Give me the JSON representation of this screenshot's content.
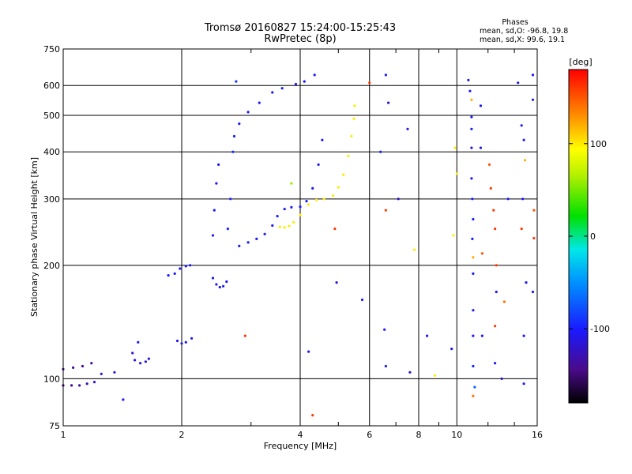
{
  "chart_data": {
    "type": "scatter",
    "title": "Tromsø 20160827 15:24:00-15:25:43",
    "subtitle": "RwPretec (8p)",
    "xlabel": "Frequency [MHz]",
    "ylabel": "Stationary phase Virtual Height [km]",
    "x_scale": "log",
    "y_scale": "log",
    "xlim": [
      1,
      16
    ],
    "ylim": [
      75,
      750
    ],
    "x_ticks": [
      1,
      2,
      4,
      6,
      8,
      10,
      16
    ],
    "y_ticks": [
      75,
      100,
      200,
      300,
      400,
      500,
      600,
      750
    ],
    "grid": true,
    "stats": {
      "heading": "Phases",
      "o_line": "mean, sd,O: -96.8, 19.8",
      "x_line": "mean, sd,X:  99.6, 19.1"
    },
    "colorbar": {
      "label": "[deg]",
      "range": [
        -180,
        180
      ],
      "ticks": [
        100,
        0,
        -100
      ],
      "tick_labels": [
        "100",
        "0",
        "-100"
      ]
    },
    "series": [
      {
        "mode": "O",
        "points": [
          [
            1.0,
            96,
            -140
          ],
          [
            1.05,
            96,
            -140
          ],
          [
            1.1,
            96,
            -135
          ],
          [
            1.15,
            97,
            -130
          ],
          [
            1.2,
            98,
            -120
          ],
          [
            1.0,
            106,
            -140
          ],
          [
            1.06,
            107,
            -140
          ],
          [
            1.12,
            108,
            -140
          ],
          [
            1.18,
            110,
            -135
          ],
          [
            1.52,
            112,
            -110
          ],
          [
            1.57,
            110,
            -110
          ],
          [
            1.62,
            111,
            -110
          ],
          [
            1.65,
            113,
            -110
          ],
          [
            1.5,
            117,
            -110
          ],
          [
            1.85,
            188,
            -100
          ],
          [
            1.92,
            190,
            -100
          ],
          [
            1.98,
            196,
            -100
          ],
          [
            2.05,
            199,
            -100
          ],
          [
            2.1,
            200,
            -100
          ],
          [
            1.95,
            126,
            -110
          ],
          [
            2.0,
            124,
            -110
          ],
          [
            2.05,
            125,
            -110
          ],
          [
            2.12,
            128,
            -110
          ],
          [
            2.4,
            185,
            -100
          ],
          [
            2.45,
            178,
            -100
          ],
          [
            2.5,
            175,
            -100
          ],
          [
            2.55,
            176,
            -100
          ],
          [
            2.6,
            181,
            -100
          ],
          [
            2.4,
            240,
            -100
          ],
          [
            2.42,
            280,
            -100
          ],
          [
            2.45,
            330,
            -100
          ],
          [
            2.48,
            370,
            -100
          ],
          [
            2.62,
            250,
            -95
          ],
          [
            2.66,
            300,
            -95
          ],
          [
            2.7,
            400,
            -95
          ],
          [
            2.72,
            440,
            -95
          ],
          [
            2.8,
            475,
            -100
          ],
          [
            2.95,
            510,
            -100
          ],
          [
            3.15,
            540,
            -100
          ],
          [
            3.4,
            575,
            -100
          ],
          [
            3.6,
            590,
            -100
          ],
          [
            3.9,
            605,
            -100
          ],
          [
            4.1,
            615,
            -100
          ],
          [
            4.35,
            640,
            -100
          ],
          [
            2.8,
            225,
            -100
          ],
          [
            2.95,
            230,
            -100
          ],
          [
            3.1,
            235,
            -100
          ],
          [
            3.25,
            242,
            -100
          ],
          [
            3.4,
            255,
            -100
          ],
          [
            3.5,
            270,
            -100
          ],
          [
            3.65,
            282,
            -100
          ],
          [
            3.8,
            285,
            -100
          ],
          [
            4.0,
            286,
            -100
          ],
          [
            4.15,
            296,
            -100
          ],
          [
            4.3,
            320,
            -100
          ],
          [
            4.45,
            370,
            -100
          ],
          [
            4.55,
            430,
            -100
          ]
        ]
      },
      {
        "mode": "X",
        "points": [
          [
            3.55,
            253,
            100
          ],
          [
            3.65,
            252,
            100
          ],
          [
            3.75,
            254,
            100
          ],
          [
            3.85,
            260,
            100
          ],
          [
            4.0,
            272,
            100
          ],
          [
            4.2,
            290,
            100
          ],
          [
            4.4,
            298,
            100
          ],
          [
            4.6,
            300,
            100
          ],
          [
            4.85,
            306,
            100
          ],
          [
            5.0,
            322,
            100
          ],
          [
            5.15,
            348,
            100
          ],
          [
            5.3,
            390,
            100
          ],
          [
            5.4,
            440,
            100
          ],
          [
            5.48,
            490,
            100
          ],
          [
            5.5,
            530,
            100
          ]
        ]
      },
      {
        "mode": "noise",
        "points": [
          [
            1.25,
            103,
            -110
          ],
          [
            1.35,
            104,
            -110
          ],
          [
            1.42,
            88,
            -100
          ],
          [
            1.55,
            125,
            -100
          ],
          [
            2.75,
            615,
            -90
          ],
          [
            2.9,
            130,
            160
          ],
          [
            3.8,
            330,
            60
          ],
          [
            4.2,
            118,
            -100
          ],
          [
            4.3,
            80,
            160
          ],
          [
            4.9,
            250,
            160
          ],
          [
            4.95,
            180,
            -110
          ],
          [
            5.75,
            162,
            -100
          ],
          [
            6.0,
            610,
            160
          ],
          [
            6.4,
            400,
            -100
          ],
          [
            6.6,
            640,
            -100
          ],
          [
            6.6,
            280,
            160
          ],
          [
            6.7,
            540,
            -120
          ],
          [
            6.55,
            135,
            -100
          ],
          [
            6.6,
            108,
            -100
          ],
          [
            7.1,
            300,
            -120
          ],
          [
            7.5,
            460,
            -110
          ],
          [
            7.6,
            104,
            -120
          ],
          [
            7.8,
            220,
            100
          ],
          [
            8.4,
            130,
            -100
          ],
          [
            8.8,
            102,
            100
          ],
          [
            9.7,
            120,
            -100
          ],
          [
            9.8,
            240,
            100
          ],
          [
            9.9,
            410,
            100
          ],
          [
            10.0,
            350,
            100
          ],
          [
            10.7,
            620,
            -100
          ],
          [
            10.8,
            580,
            -100
          ],
          [
            10.9,
            550,
            120
          ],
          [
            10.9,
            495,
            -100
          ],
          [
            10.9,
            460,
            -100
          ],
          [
            10.9,
            410,
            -110
          ],
          [
            10.9,
            340,
            -100
          ],
          [
            10.95,
            300,
            -100
          ],
          [
            11.0,
            265,
            -100
          ],
          [
            10.95,
            235,
            -100
          ],
          [
            11.0,
            210,
            120
          ],
          [
            11.0,
            190,
            -100
          ],
          [
            11.0,
            152,
            -100
          ],
          [
            11.0,
            130,
            -100
          ],
          [
            11.0,
            108,
            -100
          ],
          [
            11.1,
            95,
            -70
          ],
          [
            11.0,
            90,
            140
          ],
          [
            11.5,
            530,
            -100
          ],
          [
            11.5,
            410,
            -100
          ],
          [
            11.6,
            215,
            150
          ],
          [
            11.6,
            130,
            -100
          ],
          [
            12.1,
            370,
            150
          ],
          [
            12.2,
            320,
            160
          ],
          [
            12.4,
            280,
            160
          ],
          [
            12.5,
            250,
            160
          ],
          [
            12.6,
            200,
            160
          ],
          [
            12.6,
            170,
            -100
          ],
          [
            12.5,
            138,
            160
          ],
          [
            12.5,
            110,
            -100
          ],
          [
            13.0,
            100,
            -120
          ],
          [
            13.2,
            160,
            140
          ],
          [
            13.5,
            300,
            -100
          ],
          [
            14.3,
            610,
            -100
          ],
          [
            14.6,
            470,
            -100
          ],
          [
            14.8,
            430,
            -100
          ],
          [
            14.9,
            380,
            120
          ],
          [
            14.7,
            300,
            -100
          ],
          [
            14.6,
            250,
            160
          ],
          [
            15.0,
            180,
            -100
          ],
          [
            14.8,
            130,
            -100
          ],
          [
            14.8,
            97,
            -100
          ],
          [
            15.6,
            640,
            -100
          ],
          [
            15.6,
            550,
            -100
          ],
          [
            15.7,
            280,
            150
          ],
          [
            15.7,
            236,
            160
          ],
          [
            15.6,
            170,
            -100
          ]
        ]
      }
    ]
  }
}
